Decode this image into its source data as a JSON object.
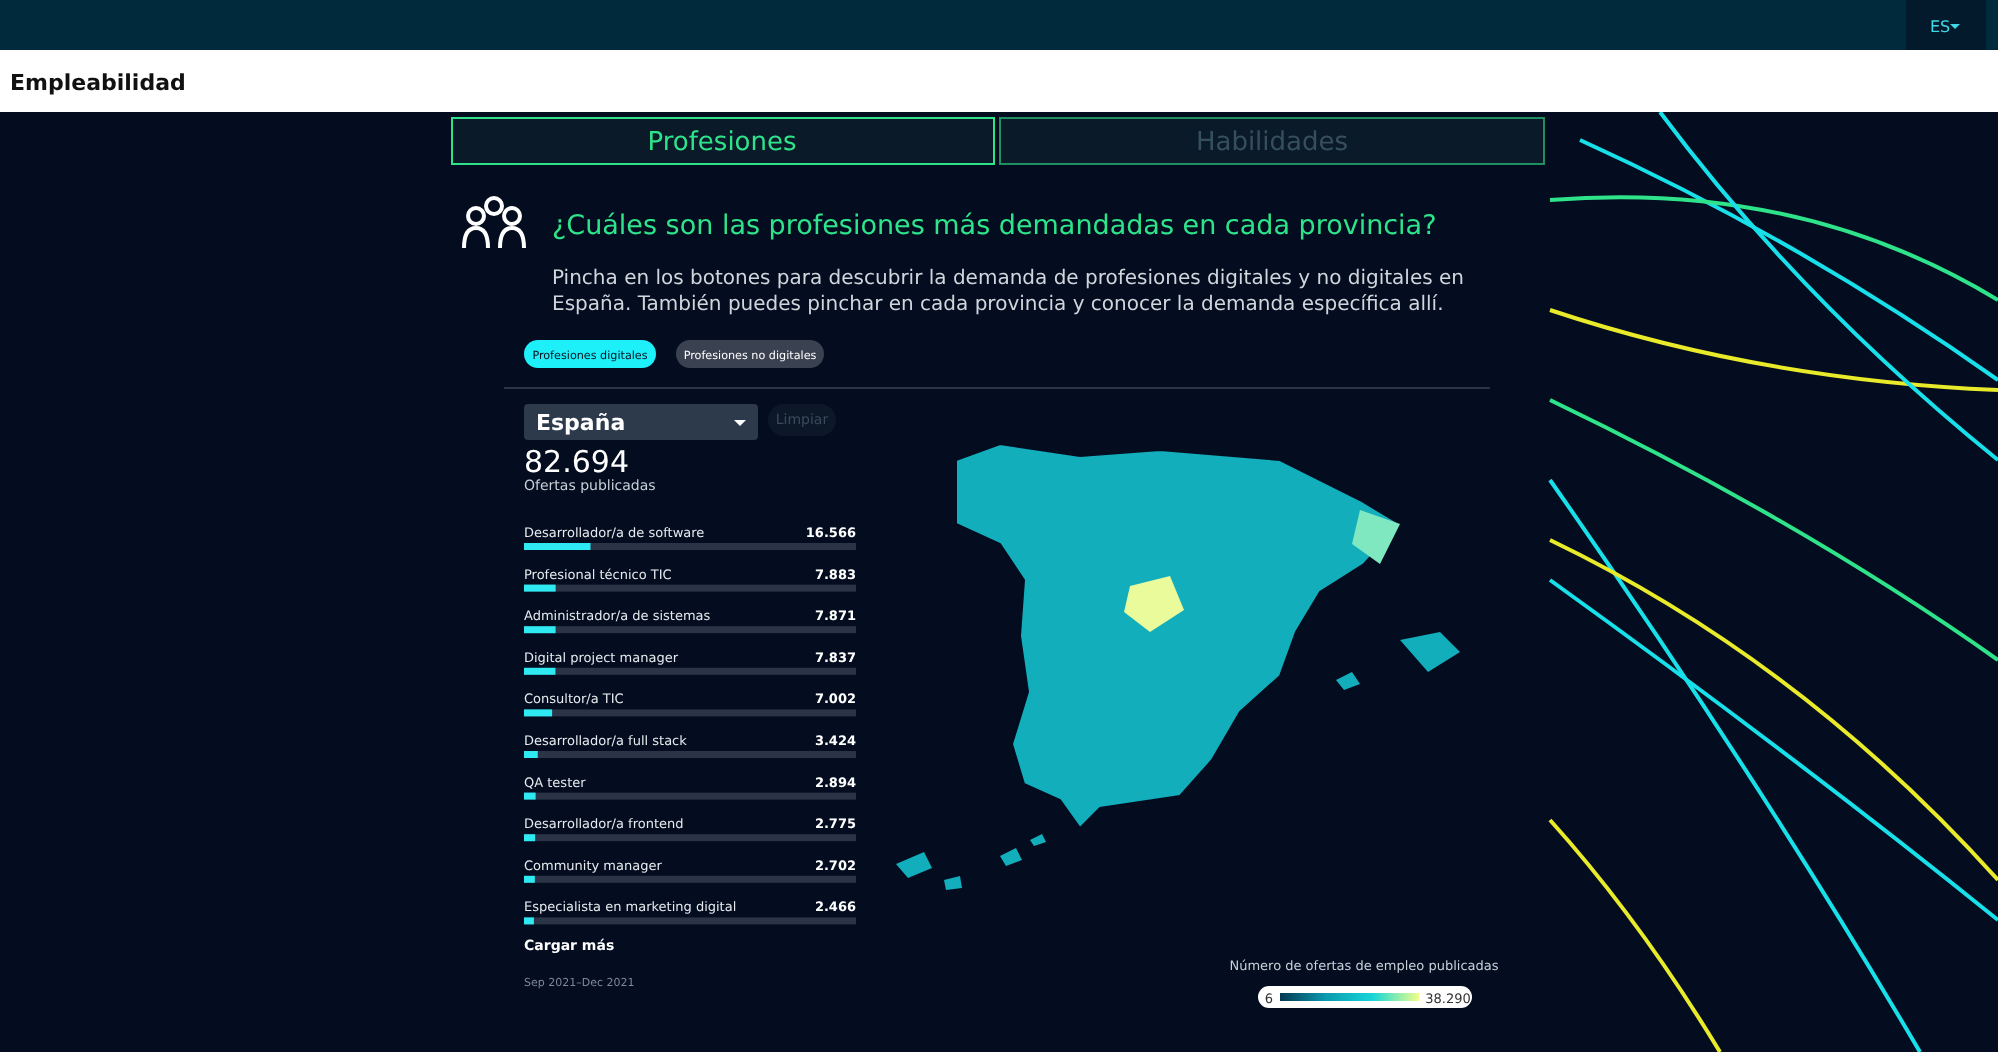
{
  "chart_data": [
    {
      "type": "bar",
      "orientation": "horizontal",
      "title": "¿Cuáles son las profesiones más demandadas en cada provincia?",
      "subtitle": "Pincha en los botones para descubrir la demanda de profesiones digitales y no digitales en España. También puedes pinchar en cada provincia y conocer la demanda específica allí.",
      "categories": [
        "Desarrollador/a de software",
        "Profesional técnico TIC",
        "Administrador/a de sistemas",
        "Digital project manager",
        "Consultor/a TIC",
        "Desarrollador/a full stack",
        "QA tester",
        "Desarrollador/a frontend",
        "Community manager",
        "Especialista en marketing digital"
      ],
      "values": [
        16566,
        7883,
        7871,
        7837,
        7002,
        3424,
        2894,
        2775,
        2702,
        2466
      ],
      "value_labels": [
        "16.566",
        "7.883",
        "7.871",
        "7.837",
        "7.002",
        "3.424",
        "2.894",
        "2.775",
        "2.702",
        "2.466"
      ],
      "color": "#2ee8f2",
      "xlim": [
        0,
        82694
      ],
      "tick_labels": false,
      "annotations": [
        "ES",
        "Empleabilidad",
        "Profesiones",
        "Habilidades",
        "Profesiones digitales",
        "Profesiones no digitales",
        "España",
        "Limpiar",
        "82.694",
        "Ofertas publicadas",
        "Cargar más",
        "Sep 2021–Dec 2021"
      ]
    },
    {
      "type": "other",
      "clabel": "Número de ofertas de empleo publicadas",
      "annotations": [
        "6",
        "38.290"
      ],
      "colors": [
        "#063a52",
        "#0a9bb0",
        "#18d6d8",
        "#f0ff8a"
      ]
    }
  ]
}
